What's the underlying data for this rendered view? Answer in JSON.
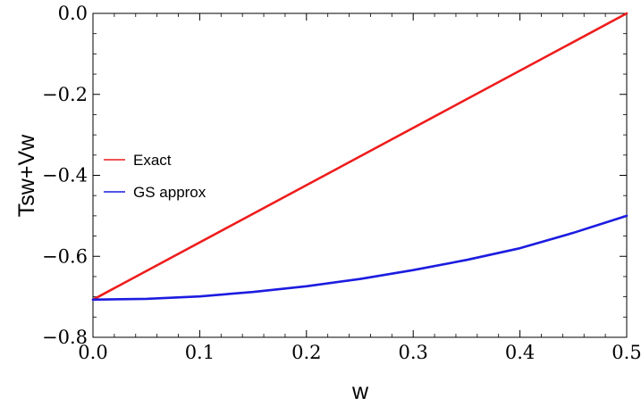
{
  "chart_data": {
    "type": "line",
    "xlabel": "w",
    "ylabel": "Tsw+Vw",
    "xlim": [
      0.0,
      0.5
    ],
    "ylim": [
      -0.8,
      0.0
    ],
    "x_ticks": [
      "0.0",
      "0.1",
      "0.2",
      "0.3",
      "0.4",
      "0.5"
    ],
    "y_ticks": [
      "0.0",
      "−0.2",
      "−0.4",
      "−0.6",
      "−0.8"
    ],
    "legend_position": "left",
    "grid": false,
    "series": [
      {
        "name": "Exact",
        "color": "#ee1c1c",
        "x": [
          0.0,
          0.5
        ],
        "y": [
          -0.707,
          0.0
        ]
      },
      {
        "name": "GS approx",
        "color": "#1c1ce0",
        "x": [
          0.0,
          0.05,
          0.1,
          0.15,
          0.2,
          0.25,
          0.3,
          0.35,
          0.4,
          0.45,
          0.5
        ],
        "y": [
          -0.707,
          -0.705,
          -0.699,
          -0.688,
          -0.674,
          -0.656,
          -0.634,
          -0.609,
          -0.58,
          -0.542,
          -0.5
        ]
      }
    ]
  }
}
